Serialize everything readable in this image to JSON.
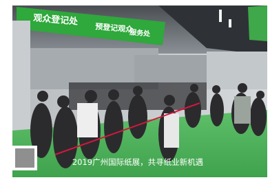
{
  "signs": {
    "main": "观众登记处",
    "pre": "预登记观众",
    "service": "服务处"
  },
  "caption": "2019广州国际纸展，共寻纸业新机遇"
}
